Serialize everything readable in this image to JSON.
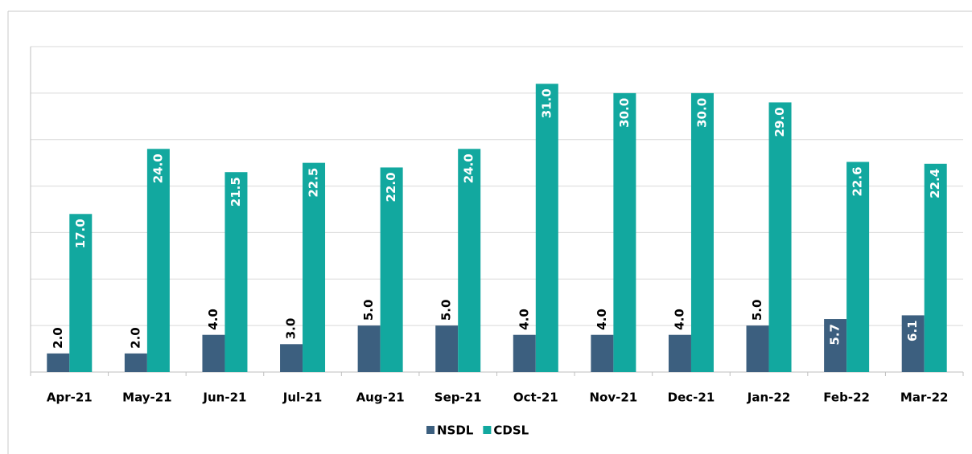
{
  "chart_data": {
    "type": "bar",
    "categories": [
      "Apr-21",
      "May-21",
      "Jun-21",
      "Jul-21",
      "Aug-21",
      "Sep-21",
      "Oct-21",
      "Nov-21",
      "Dec-21",
      "Jan-22",
      "Feb-22",
      "Mar-22"
    ],
    "series": [
      {
        "name": "NSDL",
        "color": "#3c5f7f",
        "values": [
          2.0,
          2.0,
          4.0,
          3.0,
          5.0,
          5.0,
          4.0,
          4.0,
          4.0,
          5.0,
          5.7,
          6.1
        ],
        "value_labels": [
          "2.0",
          "2.0",
          "4.0",
          "3.0",
          "5.0",
          "5.0",
          "4.0",
          "4.0",
          "4.0",
          "5.0",
          "5.7",
          "6.1"
        ]
      },
      {
        "name": "CDSL",
        "color": "#12a89f",
        "values": [
          17.0,
          24.0,
          21.5,
          22.5,
          22.0,
          24.0,
          31.0,
          30.0,
          30.0,
          29.0,
          22.6,
          22.4
        ],
        "value_labels": [
          "17.0",
          "24.0",
          "21.5",
          "22.5",
          "22.0",
          "24.0",
          "31.0",
          "30.0",
          "30.0",
          "29.0",
          "22.6",
          "22.4"
        ]
      }
    ],
    "ylim": [
      0,
      35
    ],
    "yticks": [
      0,
      5,
      10,
      15,
      20,
      25,
      30,
      35
    ],
    "grid": true,
    "legend": "bottom"
  }
}
